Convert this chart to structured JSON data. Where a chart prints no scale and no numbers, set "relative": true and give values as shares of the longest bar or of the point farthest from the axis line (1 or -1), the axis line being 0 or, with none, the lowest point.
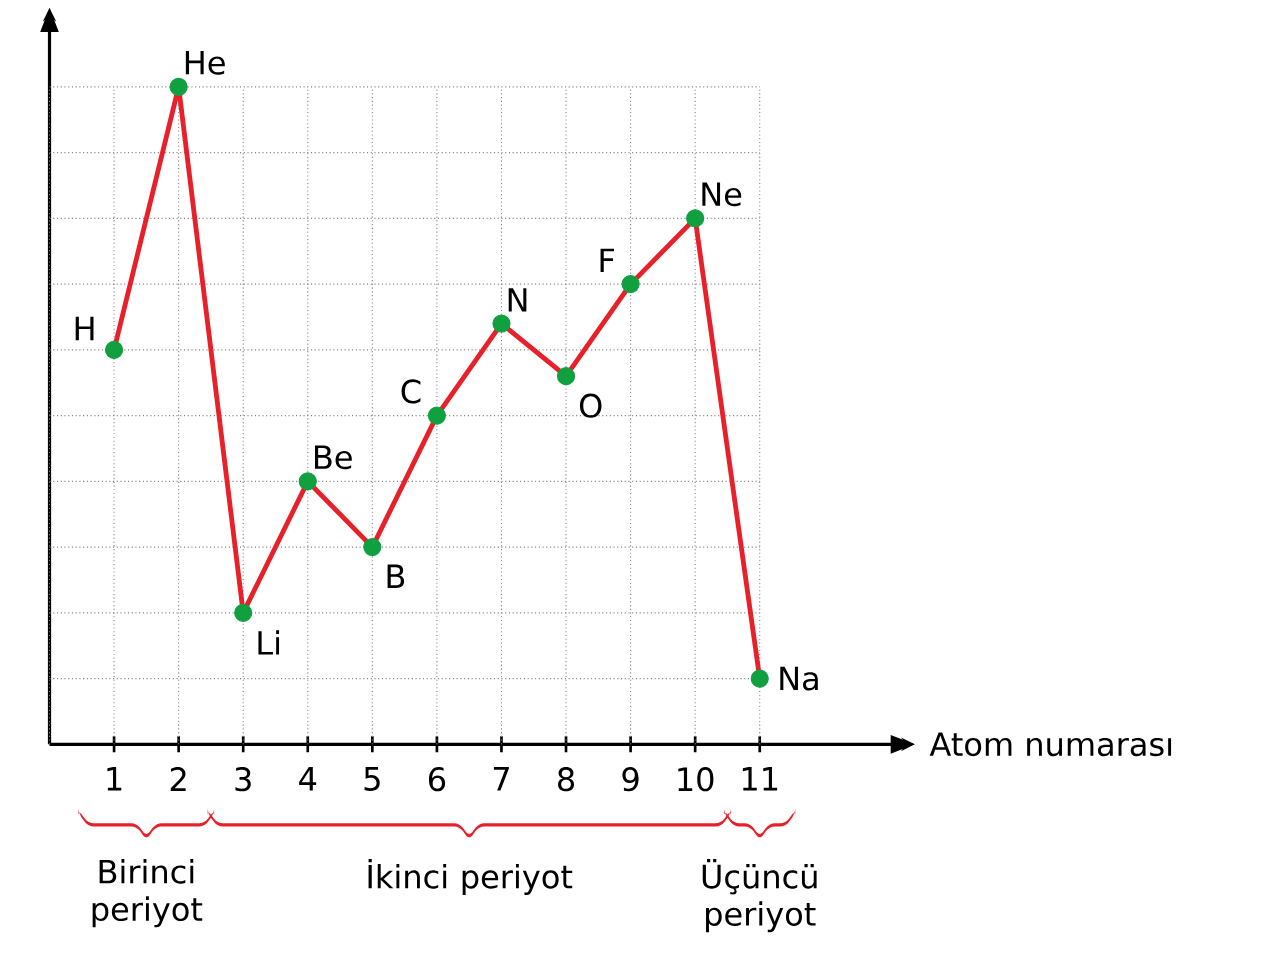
{
  "chart_data": {
    "type": "line",
    "relative": true,
    "xlabel": "Atom numarası",
    "categories": [
      "1",
      "2",
      "3",
      "4",
      "5",
      "6",
      "7",
      "8",
      "9",
      "10",
      "11"
    ],
    "series": [
      {
        "color": "#e8202a",
        "colors": [
          "#10a040",
          "#10a040",
          "#10a040",
          "#10a040",
          "#10a040",
          "#10a040",
          "#10a040",
          "#10a040",
          "#10a040",
          "#10a040",
          "#10a040"
        ],
        "values": [
          0.6,
          1,
          0.2,
          0.4,
          0.3,
          0.5,
          0.64,
          0.56,
          0.7,
          0.8,
          0.1
        ]
      }
    ],
    "marker": "circle",
    "grid": true,
    "annotations": [
      {
        "text": "H",
        "x": "1",
        "y": 0.6
      },
      {
        "text": "He",
        "x": "2",
        "y": 1
      },
      {
        "text": "Li",
        "x": "3",
        "y": 0.2
      },
      {
        "text": "Be",
        "x": "4",
        "y": 0.4
      },
      {
        "text": "B",
        "x": "5",
        "y": 0.3
      },
      {
        "text": "C",
        "x": "6",
        "y": 0.5
      },
      {
        "text": "N",
        "x": "7",
        "y": 0.64
      },
      {
        "text": "O",
        "x": "8",
        "y": 0.56
      },
      {
        "text": "F",
        "x": "9",
        "y": 0.7
      },
      {
        "text": "Ne",
        "x": "10",
        "y": 0.8
      },
      {
        "text": "Na",
        "x": "11",
        "y": 0.1
      },
      "Birinci periyot",
      "İkinci periyot",
      "Üçüncü periyot"
    ]
  }
}
